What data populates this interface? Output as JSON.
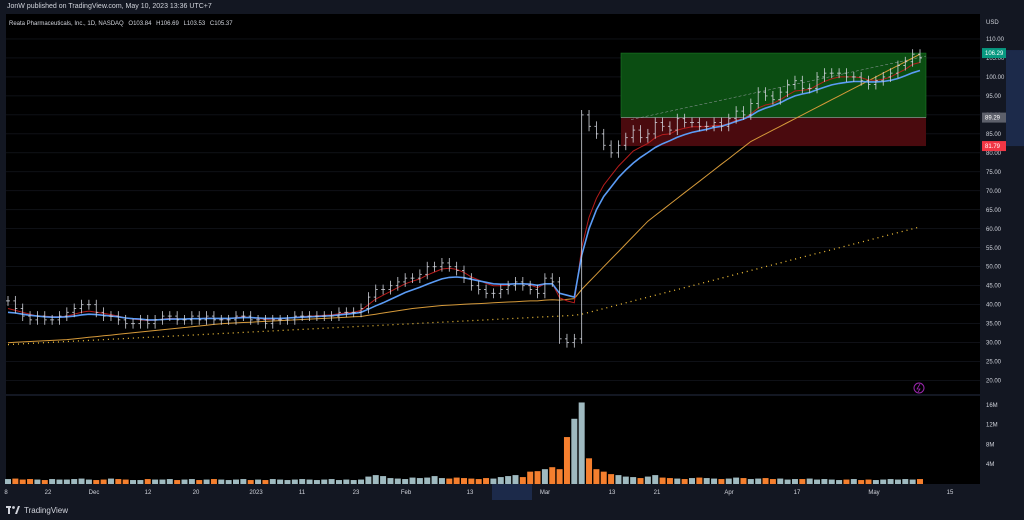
{
  "publish_line": "JonW published on TradingView.com, May 10, 2023 13:36 UTC+7",
  "footer_brand": "TradingView",
  "symbol_header": {
    "name": "Reata Pharmaceuticals, Inc., 1D, NASDAQ",
    "o_label": "O",
    "o": "103.84",
    "h_label": "H",
    "h": "106.69",
    "l_label": "L",
    "l": "103.53",
    "c_label": "C",
    "c": "105.37"
  },
  "currency": "USD",
  "colors": {
    "bg": "#131722",
    "plot_bg": "#000000",
    "grid": "#1e222d",
    "text": "#d1d4dc",
    "bar": "#d1d4dc",
    "ema_red": "#b71c1c",
    "ema_blue": "#5b9cf6",
    "ma_orange": "#d69a3a",
    "ma_dots": "#f3c13a",
    "profit_zone": "#0b4d12",
    "loss_zone": "#4a0a0e",
    "vol_up": "#9fbac0",
    "vol_down": "#f57f2e",
    "price_label_green": "#089981",
    "price_label_gray": "#5d606b",
    "price_label_red": "#f23645",
    "x_highlight": "#1c2a4a"
  },
  "chart_data": {
    "type": "ohlc",
    "title": "Reata Pharmaceuticals, Inc., 1D, NASDAQ",
    "y_ticks": [
      110.0,
      105.0,
      100.0,
      95.0,
      90.0,
      85.0,
      80.0,
      75.0,
      70.0,
      65.0,
      60.0,
      55.0,
      50.0,
      45.0,
      40.0,
      35.0,
      30.0,
      25.0,
      20.0
    ],
    "y_tick_labels": [
      "110.00",
      "105.00",
      "100.00",
      "95.00",
      "90.00",
      "85.00",
      "80.00",
      "75.00",
      "70.00",
      "65.00",
      "60.00",
      "55.00",
      "50.00",
      "45.00",
      "40.00",
      "35.00",
      "30.00",
      "25.00",
      "20.00"
    ],
    "ylim": [
      17,
      115
    ],
    "x_tick_labels": [
      "8",
      "22",
      "Dec",
      "12",
      "20",
      "2023",
      "11",
      "23",
      "Feb",
      "13",
      "Mar",
      "13",
      "21",
      "Apr",
      "17",
      "May",
      "15"
    ],
    "price_labels": [
      {
        "value": 106.29,
        "text": "106.29",
        "kind": "green"
      },
      {
        "value": 89.29,
        "text": "89.29",
        "kind": "gray"
      },
      {
        "value": 81.79,
        "text": "81.79",
        "kind": "red"
      }
    ],
    "position": {
      "entry": 89.29,
      "target": 106.29,
      "stop": 81.79
    },
    "vol_ticks": [
      16,
      12,
      8,
      4
    ],
    "vol_tick_labels": [
      "16M",
      "12M",
      "8M",
      "4M"
    ],
    "vol_max": 17,
    "bars_close": [
      41,
      39,
      37,
      36,
      37,
      36,
      36,
      37,
      38,
      39,
      40,
      40,
      38,
      37,
      37,
      36,
      35,
      35,
      36,
      35,
      36,
      37,
      37,
      36,
      36,
      37,
      36,
      37,
      36,
      36,
      36,
      37,
      37,
      36,
      36,
      35,
      36,
      36,
      36,
      37,
      37,
      37,
      37,
      37,
      37,
      38,
      38,
      38,
      39,
      42,
      44,
      44,
      45,
      46,
      47,
      47,
      48,
      50,
      50,
      51,
      50,
      49,
      47,
      45,
      44,
      43,
      43,
      44,
      45,
      46,
      45,
      44,
      43,
      47,
      46,
      31,
      30,
      31,
      90,
      87,
      85,
      82,
      80,
      82,
      84,
      86,
      84,
      85,
      88,
      87,
      86,
      89,
      88,
      88,
      87,
      87,
      88,
      87,
      89,
      91,
      90,
      93,
      96,
      95,
      94,
      96,
      98,
      99,
      97,
      97,
      100,
      101,
      101,
      101,
      100,
      100,
      99,
      98,
      99,
      100,
      101,
      103,
      104,
      106,
      105
    ],
    "volume_m": [
      1.0,
      1.1,
      0.9,
      1.0,
      0.9,
      0.8,
      1.0,
      0.9,
      0.9,
      1.0,
      1.1,
      0.9,
      0.8,
      0.9,
      1.1,
      1.0,
      0.9,
      0.8,
      0.8,
      1.0,
      0.9,
      0.9,
      1.0,
      0.8,
      0.9,
      1.0,
      0.8,
      0.9,
      1.0,
      0.9,
      0.8,
      0.9,
      1.0,
      0.8,
      0.9,
      0.8,
      1.0,
      0.9,
      0.8,
      0.9,
      1.0,
      0.9,
      0.8,
      0.9,
      1.0,
      0.8,
      0.9,
      0.8,
      0.9,
      1.5,
      1.8,
      1.6,
      1.2,
      1.1,
      1.0,
      1.3,
      1.2,
      1.3,
      1.6,
      1.2,
      1.1,
      1.3,
      1.2,
      1.1,
      1.0,
      1.2,
      1.1,
      1.4,
      1.6,
      1.8,
      1.4,
      2.5,
      2.6,
      3.0,
      3.4,
      3.0,
      9.5,
      13.2,
      16.5,
      5.2,
      3.0,
      2.5,
      2.0,
      1.8,
      1.5,
      1.4,
      1.2,
      1.5,
      1.8,
      1.3,
      1.2,
      1.1,
      1.0,
      1.2,
      1.3,
      1.2,
      1.1,
      1.0,
      1.1,
      1.3,
      1.2,
      1.0,
      1.1,
      1.2,
      1.0,
      1.1,
      0.9,
      1.0,
      1.0,
      1.1,
      0.9,
      1.0,
      0.9,
      0.8,
      0.9,
      1.0,
      0.8,
      0.9,
      0.8,
      0.9,
      1.0,
      0.9,
      1.0,
      0.9,
      1.0
    ],
    "ema_red": [
      39,
      38.5,
      38,
      37.5,
      37,
      37,
      36.8,
      36.8,
      37,
      37.5,
      38,
      38.3,
      38,
      37.7,
      37.4,
      37,
      36.5,
      36.2,
      36,
      35.8,
      35.9,
      36.2,
      36.4,
      36.3,
      36.2,
      36.4,
      36.3,
      36.5,
      36.4,
      36.3,
      36.3,
      36.6,
      36.8,
      36.6,
      36.4,
      36.1,
      36.2,
      36.3,
      36.4,
      36.7,
      36.9,
      37,
      37.1,
      37.2,
      37.3,
      37.6,
      37.8,
      38,
      38.5,
      40,
      41.5,
      42.5,
      43.5,
      44.5,
      45.5,
      46.2,
      46.8,
      47.8,
      48.6,
      49.4,
      49.6,
      49.3,
      48.5,
      47.3,
      46.5,
      45.6,
      45,
      45,
      45.2,
      45.6,
      45.5,
      45.2,
      44.5,
      45.5,
      45.6,
      41.8,
      41,
      40.5,
      55,
      63,
      68,
      71.5,
      74,
      76.5,
      78.5,
      80.5,
      81.5,
      82.5,
      84,
      84.8,
      85,
      86,
      86.5,
      86.9,
      86.9,
      86.9,
      87.2,
      87.2,
      87.7,
      88.6,
      89,
      90.2,
      91.8,
      92.6,
      93,
      94,
      95.2,
      96.3,
      96.5,
      96.7,
      97.8,
      98.8,
      99.5,
      100,
      100,
      100,
      99.8,
      99.2,
      99.1,
      99.4,
      100,
      101,
      102,
      103.3,
      103.8
    ],
    "ema_blue": [
      38,
      37.8,
      37.5,
      37.2,
      37,
      36.8,
      36.7,
      36.7,
      36.8,
      37,
      37.3,
      37.5,
      37.4,
      37.2,
      37,
      36.8,
      36.5,
      36.3,
      36.2,
      36,
      36,
      36.1,
      36.2,
      36.2,
      36.2,
      36.3,
      36.3,
      36.4,
      36.4,
      36.4,
      36.4,
      36.5,
      36.6,
      36.6,
      36.5,
      36.4,
      36.4,
      36.4,
      36.5,
      36.6,
      36.7,
      36.8,
      36.9,
      37,
      37.1,
      37.3,
      37.5,
      37.7,
      38,
      38.8,
      39.7,
      40.5,
      41.4,
      42.3,
      43.2,
      43.9,
      44.6,
      45.4,
      46.1,
      46.8,
      47.2,
      47.3,
      47.1,
      46.7,
      46.3,
      45.9,
      45.5,
      45.4,
      45.4,
      45.5,
      45.5,
      45.4,
      45.1,
      45.5,
      45.5,
      43,
      42.5,
      42,
      53,
      60,
      65,
      68.5,
      71,
      73.5,
      75.5,
      77.3,
      78.8,
      80.1,
      81.4,
      82.4,
      83.2,
      84.1,
      84.8,
      85.4,
      85.8,
      86.2,
      86.7,
      87,
      87.6,
      88.3,
      88.9,
      89.8,
      91,
      91.8,
      92.4,
      93.2,
      94.2,
      95,
      95.5,
      95.9,
      96.6,
      97.3,
      97.9,
      98.3,
      98.6,
      98.8,
      98.8,
      98.7,
      98.7,
      98.8,
      99.1,
      99.6,
      100.3,
      101.1,
      101.7
    ],
    "ma_orange": [
      30,
      30.1,
      30.2,
      30.3,
      30.4,
      30.5,
      30.6,
      30.7,
      30.8,
      31,
      31.2,
      31.4,
      31.6,
      31.8,
      32,
      32.2,
      32.4,
      32.6,
      32.8,
      33,
      33.2,
      33.4,
      33.6,
      33.8,
      34,
      34.2,
      34.4,
      34.6,
      34.8,
      35,
      35.1,
      35.2,
      35.3,
      35.4,
      35.5,
      35.6,
      35.7,
      35.8,
      35.9,
      36,
      36.1,
      36.2,
      36.3,
      36.4,
      36.5,
      36.6,
      36.7,
      36.8,
      36.9,
      37.2,
      37.5,
      37.8,
      38.1,
      38.4,
      38.7,
      39,
      39.2,
      39.4,
      39.6,
      39.8,
      39.9,
      40,
      40.1,
      40.2,
      40.3,
      40.4,
      40.5,
      40.6,
      40.7,
      40.8,
      40.9,
      41,
      41,
      41.2,
      41.3,
      41.2,
      41.4,
      41.6,
      44,
      46,
      48,
      50,
      52,
      54,
      56,
      58,
      60,
      62,
      63.5,
      65,
      66.5,
      68,
      69.5,
      71,
      72.5,
      74,
      75.5,
      77,
      78.5,
      80,
      81.5,
      83,
      84,
      85,
      86,
      87,
      88,
      89,
      90,
      91,
      92,
      93,
      94,
      95,
      96,
      97,
      98,
      99,
      100,
      101,
      102,
      103,
      104,
      105,
      106
    ],
    "ma_dots": [
      29.5,
      29.6,
      29.7,
      29.8,
      29.9,
      30,
      30.1,
      30.2,
      30.3,
      30.4,
      30.5,
      30.6,
      30.7,
      30.8,
      30.9,
      31,
      31.1,
      31.2,
      31.3,
      31.4,
      31.5,
      31.6,
      31.7,
      31.8,
      31.9,
      32,
      32.1,
      32.2,
      32.3,
      32.4,
      32.5,
      32.6,
      32.7,
      32.8,
      32.9,
      33,
      33.1,
      33.2,
      33.3,
      33.4,
      33.5,
      33.6,
      33.7,
      33.8,
      33.9,
      34,
      34.1,
      34.2,
      34.3,
      34.4,
      34.5,
      34.6,
      34.7,
      34.8,
      34.9,
      35,
      35.1,
      35.2,
      35.3,
      35.4,
      35.5,
      35.6,
      35.7,
      35.8,
      35.9,
      36,
      36.1,
      36.2,
      36.3,
      36.4,
      36.5,
      36.6,
      36.7,
      36.8,
      36.9,
      37,
      37.1,
      37.2,
      37.5,
      38,
      38.5,
      39,
      39.5,
      40,
      40.5,
      41,
      41.5,
      42,
      42.5,
      43,
      43.5,
      44,
      44.5,
      45,
      45.5,
      46,
      46.5,
      47,
      47.5,
      48,
      48.5,
      49,
      49.5,
      50,
      50.5,
      51,
      51.5,
      52,
      52.5,
      53,
      53.5,
      54,
      54.5,
      55,
      55.5,
      56,
      56.5,
      57,
      57.5,
      58,
      58.5,
      59,
      59.5,
      60,
      60.5
    ]
  }
}
